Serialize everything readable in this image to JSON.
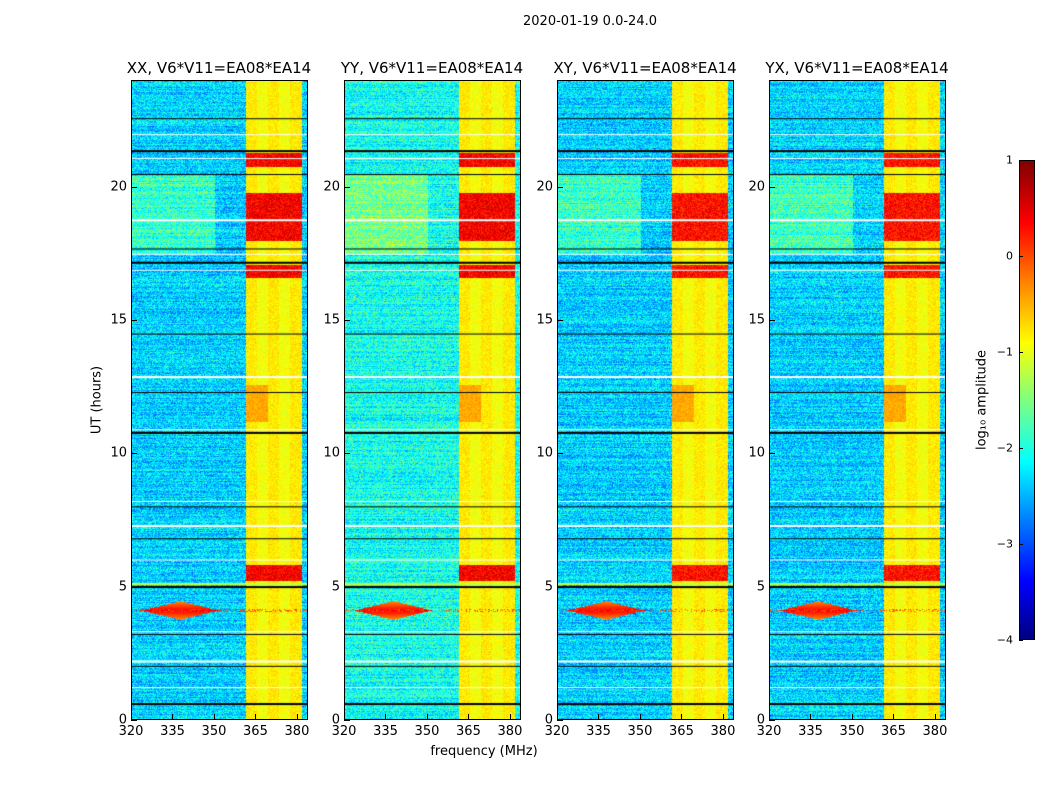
{
  "suptitle": "2020-01-19 0.0-24.0",
  "chart_data": [
    {
      "type": "heatmap",
      "title": "XX, V6*V11=EA08*EA14",
      "xlabel": "frequency (MHz)",
      "ylabel": "UT (hours)",
      "xlim": [
        320,
        384
      ],
      "ylim": [
        0,
        24
      ],
      "xticks": [
        "320",
        "335",
        "350",
        "365",
        "380"
      ],
      "yticks": [
        "0",
        "5",
        "10",
        "15",
        "20"
      ],
      "colormap": "jet",
      "clim": [
        -4,
        1
      ]
    },
    {
      "type": "heatmap",
      "title": "YY, V6*V11=EA08*EA14",
      "xlabel": "frequency (MHz)",
      "ylabel": "UT (hours)",
      "xlim": [
        320,
        384
      ],
      "ylim": [
        0,
        24
      ],
      "xticks": [
        "320",
        "335",
        "350",
        "365",
        "380"
      ],
      "yticks": [
        "0",
        "5",
        "10",
        "15",
        "20"
      ],
      "colormap": "jet",
      "clim": [
        -4,
        1
      ]
    },
    {
      "type": "heatmap",
      "title": "XY, V6*V11=EA08*EA14",
      "xlabel": "frequency (MHz)",
      "ylabel": "UT (hours)",
      "xlim": [
        320,
        384
      ],
      "ylim": [
        0,
        24
      ],
      "xticks": [
        "320",
        "335",
        "350",
        "365",
        "380"
      ],
      "yticks": [
        "0",
        "5",
        "10",
        "15",
        "20"
      ],
      "colormap": "jet",
      "clim": [
        -4,
        1
      ]
    },
    {
      "type": "heatmap",
      "title": "YX, V6*V11=EA08*EA14",
      "xlabel": "frequency (MHz)",
      "ylabel": "UT (hours)",
      "xlim": [
        320,
        384
      ],
      "ylim": [
        0,
        24
      ],
      "xticks": [
        "320",
        "335",
        "350",
        "365",
        "380"
      ],
      "yticks": [
        "0",
        "5",
        "10",
        "15",
        "20"
      ],
      "colormap": "jet",
      "clim": [
        -4,
        1
      ]
    }
  ],
  "shared": {
    "xlabel": "frequency (MHz)",
    "ylabel": "UT (hours)"
  },
  "colorbar": {
    "label": "log₁₀ amplitude",
    "ticks": [
      "1",
      "0",
      "−1",
      "−2",
      "−3",
      "−4"
    ],
    "range": [
      -4,
      1
    ]
  }
}
